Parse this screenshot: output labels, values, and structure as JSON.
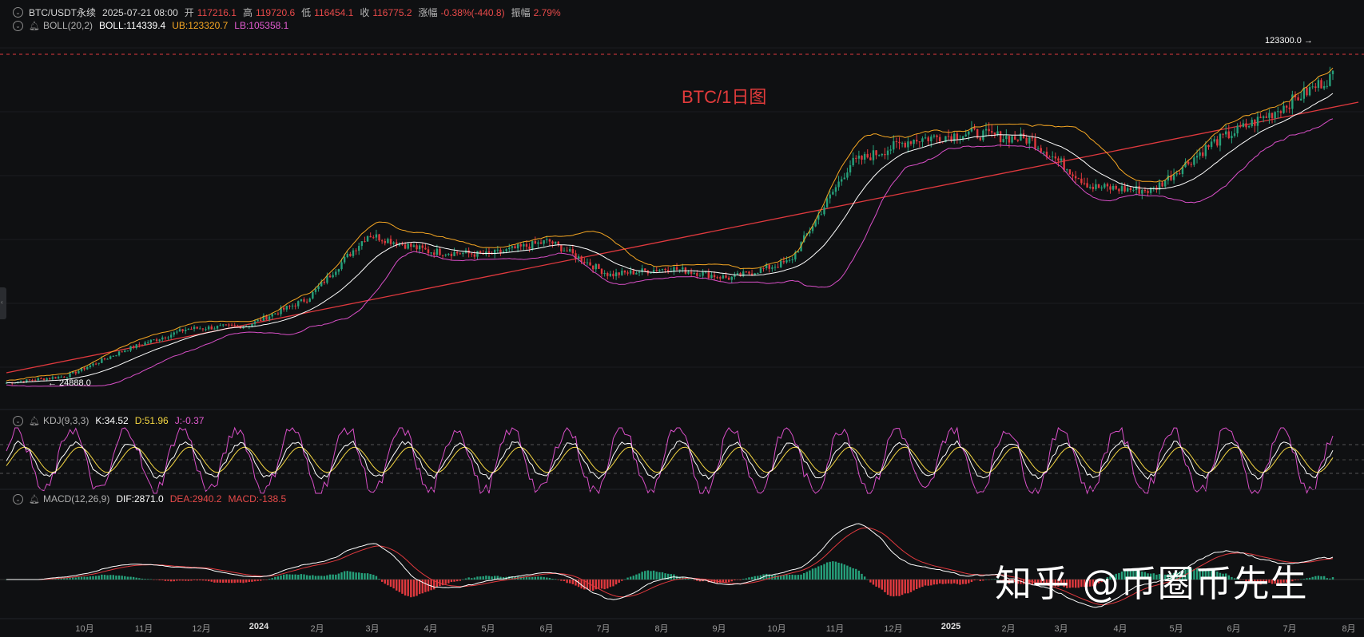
{
  "main": {
    "symbol": "BTC/USDT永续",
    "datetime": "2025-07-21 08:00",
    "open_label": "开",
    "open": "117216.1",
    "high_label": "高",
    "high": "119720.6",
    "low_label": "低",
    "low": "116454.1",
    "close_label": "收",
    "close": "116775.2",
    "change_label": "涨幅",
    "change": "-0.38%(-440.8)",
    "amp_label": "振幅",
    "amp": "2.79%"
  },
  "boll": {
    "name": "BOLL(20,2)",
    "mid": "BOLL:114339.4",
    "ub": "UB:123320.7",
    "lb": "LB:105358.1"
  },
  "kdj": {
    "name": "KDJ(9,3,3)",
    "k": "K:34.52",
    "d": "D:51.96",
    "j": "J:-0.37"
  },
  "macd": {
    "name": "MACD(12,26,9)",
    "dif": "DIF:2871.0",
    "dea": "DEA:2940.2",
    "macd": "MACD:-138.5"
  },
  "annotation": "BTC/1日图",
  "high_mark": "123300.0 →",
  "low_mark": "← 24888.0",
  "watermark": "知乎 @币圈币先生",
  "x_axis": [
    {
      "label": "10月",
      "year": false
    },
    {
      "label": "11月",
      "year": false
    },
    {
      "label": "12月",
      "year": false
    },
    {
      "label": "2024",
      "year": true
    },
    {
      "label": "2月",
      "year": false
    },
    {
      "label": "3月",
      "year": false
    },
    {
      "label": "4月",
      "year": false
    },
    {
      "label": "5月",
      "year": false
    },
    {
      "label": "6月",
      "year": false
    },
    {
      "label": "7月",
      "year": false
    },
    {
      "label": "8月",
      "year": false
    },
    {
      "label": "9月",
      "year": false
    },
    {
      "label": "10月",
      "year": false
    },
    {
      "label": "11月",
      "year": false
    },
    {
      "label": "12月",
      "year": false
    },
    {
      "label": "2025",
      "year": true
    },
    {
      "label": "2月",
      "year": false
    },
    {
      "label": "3月",
      "year": false
    },
    {
      "label": "4月",
      "year": false
    },
    {
      "label": "5月",
      "year": false
    },
    {
      "label": "6月",
      "year": false
    },
    {
      "label": "7月",
      "year": false
    },
    {
      "label": "8月",
      "year": false
    }
  ],
  "colors": {
    "up": "#26a17b",
    "down": "#e0393e",
    "boll_mid": "#ffffff",
    "boll_ub": "#f5a623",
    "boll_lb": "#d94fc8",
    "trendline": "#e0393e",
    "kdj_k": "#ffffff",
    "kdj_d": "#f5d742",
    "kdj_j": "#d94fc8",
    "macd_dif": "#ffffff",
    "macd_dea": "#e0393e"
  },
  "chart_data": {
    "type": "candlestick",
    "interval": "1D",
    "anchors": [
      {
        "date": "2023-09",
        "price": 26000
      },
      {
        "date": "2023-10",
        "price": 28000
      },
      {
        "date": "2023-11",
        "price": 36000
      },
      {
        "date": "2023-12",
        "price": 42000
      },
      {
        "date": "2024-01",
        "price": 43000
      },
      {
        "date": "2024-02",
        "price": 51000
      },
      {
        "date": "2024-03",
        "price": 70000
      },
      {
        "date": "2024-04",
        "price": 65000
      },
      {
        "date": "2024-05",
        "price": 64000
      },
      {
        "date": "2024-06",
        "price": 68000
      },
      {
        "date": "2024-07",
        "price": 58000
      },
      {
        "date": "2024-08",
        "price": 60000
      },
      {
        "date": "2024-09",
        "price": 57000
      },
      {
        "date": "2024-10",
        "price": 62000
      },
      {
        "date": "2024-11",
        "price": 91000
      },
      {
        "date": "2024-12",
        "price": 98000
      },
      {
        "date": "2025-01",
        "price": 100000
      },
      {
        "date": "2025-02",
        "price": 98000
      },
      {
        "date": "2025-03",
        "price": 84000
      },
      {
        "date": "2025-04",
        "price": 83000
      },
      {
        "date": "2025-05",
        "price": 97000
      },
      {
        "date": "2025-06",
        "price": 106000
      },
      {
        "date": "2025-07",
        "price": 117000
      }
    ],
    "highest": 123300.0,
    "lowest": 24888.0
  }
}
